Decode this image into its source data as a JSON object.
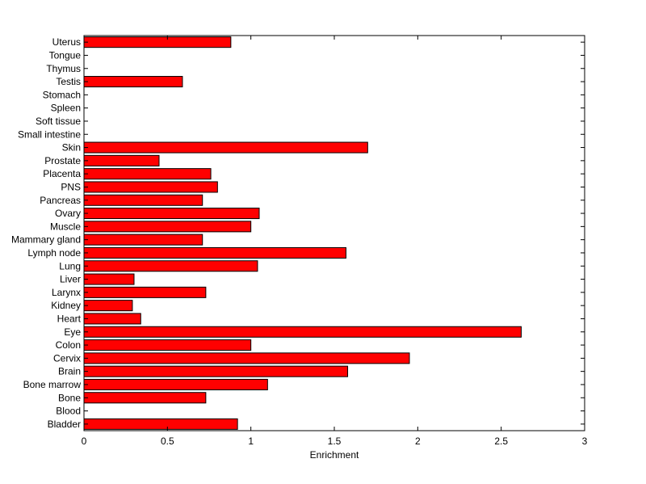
{
  "chart_data": {
    "type": "bar",
    "orientation": "horizontal",
    "xlabel": "Enrichment",
    "ylabel": "",
    "title": "",
    "xlim": [
      0,
      3
    ],
    "xticks": [
      0,
      0.5,
      1,
      1.5,
      2,
      2.5,
      3
    ],
    "xtick_labels": [
      "0",
      "0.5",
      "1",
      "1.5",
      "2",
      "2.5",
      "3"
    ],
    "grid": false,
    "bar_color": "#ff0000",
    "categories": [
      "Bladder",
      "Blood",
      "Bone",
      "Bone marrow",
      "Brain",
      "Cervix",
      "Colon",
      "Eye",
      "Heart",
      "Kidney",
      "Larynx",
      "Liver",
      "Lung",
      "Lymph node",
      "Mammary gland",
      "Muscle",
      "Ovary",
      "Pancreas",
      "PNS",
      "Placenta",
      "Prostate",
      "Skin",
      "Small intestine",
      "Soft tissue",
      "Spleen",
      "Stomach",
      "Testis",
      "Thymus",
      "Tongue",
      "Uterus"
    ],
    "values": [
      0.92,
      0,
      0.73,
      1.1,
      1.58,
      1.95,
      1.0,
      2.62,
      0.34,
      0.29,
      0.73,
      0.3,
      1.04,
      1.57,
      0.71,
      1.0,
      1.05,
      0.71,
      0.8,
      0.76,
      0.45,
      1.7,
      0,
      0,
      0,
      0,
      0.59,
      0,
      0,
      0.88
    ]
  }
}
